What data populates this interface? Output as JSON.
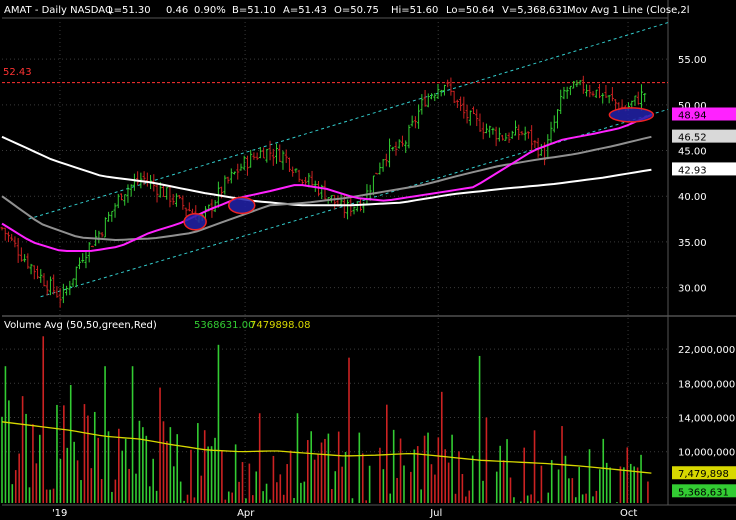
{
  "header": {
    "symbol": "AMAT - Daily NASDAQ",
    "last": "L=51.30",
    "change": "0.46",
    "change_pct": "0.90%",
    "bid": "B=51.10",
    "ask": "A=51.43",
    "open": "O=50.75",
    "high": "Hi=51.60",
    "low": "Lo=50.64",
    "volume": "V=5,368,631",
    "mov_avg": "Mov Avg 1 Line (Close,2l"
  },
  "volume_header": {
    "label": "Volume Avg (50,50,green,Red)",
    "volume_value": "5368631.00",
    "avg_value": "7479898.08"
  },
  "resistance_label": "52.43",
  "colors": {
    "up": "#33cc33",
    "down": "#cc2222",
    "ma_magenta": "#ff22ff",
    "ma_gray": "#909090",
    "ma_white": "#ffffff",
    "vol_avg": "#d8d800",
    "channel": "#33cccc",
    "resistance": "#ff3333",
    "grid": "#3a3a3a",
    "ellipse_fill": "#2222aa",
    "ellipse_stroke": "#ee2222"
  },
  "chart_data": [
    {
      "type": "candlestick",
      "title": "",
      "y_ticks": [
        "55.00",
        "50.00",
        "45.00",
        "40.00",
        "35.00",
        "30.00"
      ],
      "ylim": [
        27.0,
        59.5
      ],
      "x_tick_labels": [
        "'19",
        "Apr",
        "Jul",
        "Oct"
      ],
      "price_tags": [
        {
          "label": "48.94",
          "value": 48.94,
          "bg": "#ff22ff",
          "fg": "#000000"
        },
        {
          "label": "46.52",
          "value": 46.52,
          "bg": "#d9d9d9",
          "fg": "#000000"
        },
        {
          "label": "42.93",
          "value": 42.93,
          "bg": "#ffffff",
          "fg": "#000000"
        }
      ],
      "resistance_level": 52.43,
      "channel_upper": {
        "start": 37.5,
        "end": 59.0
      },
      "channel_lower": {
        "start": 29.0,
        "end": 49.5
      },
      "close_path": [
        36.5,
        33.5,
        31.0,
        28.8,
        33.5,
        36.5,
        40.5,
        42.0,
        40.5,
        39.0,
        37.5,
        41.0,
        43.5,
        45.0,
        44.5,
        42.0,
        40.5,
        38.5,
        39.5,
        44.5,
        45.5,
        50.5,
        52.5,
        49.0,
        47.5,
        46.5,
        47.0,
        44.5,
        51.5,
        52.0,
        51.0,
        49.5,
        51.3
      ],
      "ma_magenta_path": [
        37.0,
        35.0,
        34.0,
        34.0,
        34.5,
        36.0,
        37.0,
        38.5,
        39.8,
        40.5,
        41.3,
        40.8,
        39.8,
        39.5,
        40.0,
        40.5,
        41.0,
        43.0,
        45.0,
        46.2,
        46.8,
        47.5,
        48.9
      ],
      "ma_gray_path": [
        40.0,
        37.0,
        35.5,
        35.2,
        35.4,
        36.0,
        37.5,
        39.0,
        39.3,
        39.8,
        40.5,
        41.2,
        42.3,
        43.3,
        44.0,
        44.6,
        45.5,
        46.5
      ],
      "ma_white_path": [
        46.5,
        44.0,
        42.2,
        41.5,
        40.4,
        39.5,
        39.0,
        39.0,
        39.3,
        40.2,
        40.8,
        41.3,
        42.0,
        42.9
      ],
      "ellipses": [
        {
          "center_price": 37.2
        },
        {
          "center_price": 39.0
        },
        {
          "center_price": 48.9
        }
      ]
    },
    {
      "type": "bar",
      "title": "",
      "y_ticks": [
        "22,000,000",
        "18,000,000",
        "14,000,000",
        "10,000,000"
      ],
      "ylim": [
        4000000,
        24000000
      ],
      "tags": [
        {
          "label": "7,479,898",
          "value": 7479898,
          "bg": "#d8d800",
          "fg": "#000000"
        },
        {
          "label": "5,368,631",
          "value": 5368631,
          "bg": "#33cc33",
          "fg": "#000000"
        }
      ],
      "avg_path": [
        13.5,
        13.0,
        12.5,
        11.8,
        11.5,
        10.8,
        10.2,
        10.0,
        10.1,
        9.8,
        9.5,
        9.6,
        9.8,
        9.4,
        9.0,
        8.8,
        8.6,
        8.3,
        7.9,
        7.5
      ],
      "spikes": [
        {
          "frac": 0.005,
          "v": 20.0,
          "up": true
        },
        {
          "frac": 0.032,
          "v": 16.5,
          "up": false
        },
        {
          "frac": 0.065,
          "v": 23.5,
          "up": false
        },
        {
          "frac": 0.104,
          "v": 17.8,
          "up": true
        },
        {
          "frac": 0.16,
          "v": 20.0,
          "up": true
        },
        {
          "frac": 0.2,
          "v": 20.0,
          "up": true
        },
        {
          "frac": 0.245,
          "v": 17.5,
          "up": false
        },
        {
          "frac": 0.332,
          "v": 22.5,
          "up": true
        },
        {
          "frac": 0.396,
          "v": 14.5,
          "up": false
        },
        {
          "frac": 0.456,
          "v": 14.5,
          "up": true
        },
        {
          "frac": 0.535,
          "v": 21.0,
          "up": false
        },
        {
          "frac": 0.591,
          "v": 15.5,
          "up": false
        },
        {
          "frac": 0.675,
          "v": 17.0,
          "up": false
        },
        {
          "frac": 0.733,
          "v": 21.2,
          "up": true
        },
        {
          "frac": 0.745,
          "v": 14.0,
          "up": false
        },
        {
          "frac": 0.82,
          "v": 12.5,
          "up": false
        },
        {
          "frac": 0.865,
          "v": 13.0,
          "up": false
        },
        {
          "frac": 0.925,
          "v": 11.5,
          "up": true
        },
        {
          "frac": 0.965,
          "v": 10.5,
          "up": false
        }
      ]
    }
  ]
}
